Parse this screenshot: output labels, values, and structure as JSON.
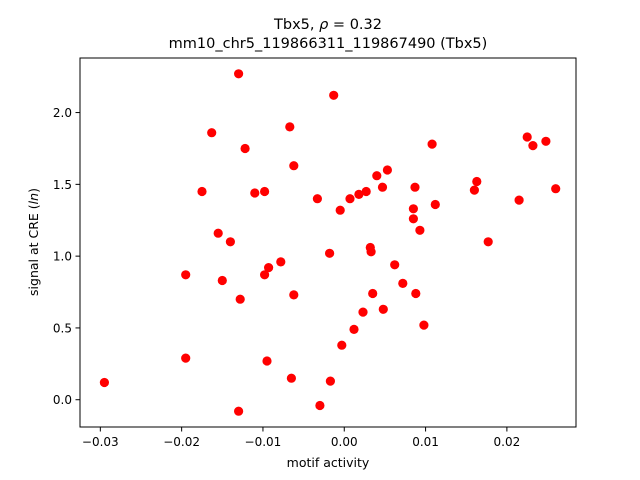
{
  "chart_data": {
    "type": "scatter",
    "title_line1": "Tbx5, ρ = 0.32",
    "title_line2": "mm10_chr5_119866311_119867490 (Tbx5)",
    "xlabel": "motif activity",
    "ylabel": "signal at CRE (ln)",
    "xlim": [
      -0.0325,
      0.0285
    ],
    "ylim": [
      -0.19,
      2.38
    ],
    "xticks": [
      -0.03,
      -0.02,
      -0.01,
      0.0,
      0.01,
      0.02
    ],
    "xtick_labels": [
      "−0.03",
      "−0.02",
      "−0.01",
      "0.00",
      "0.01",
      "0.02"
    ],
    "yticks": [
      0.0,
      0.5,
      1.0,
      1.5,
      2.0
    ],
    "ytick_labels": [
      "0.0",
      "0.5",
      "1.0",
      "1.5",
      "2.0"
    ],
    "grid": false,
    "point_color": "#ff0000",
    "points": [
      [
        -0.0295,
        0.12
      ],
      [
        -0.0195,
        0.29
      ],
      [
        -0.0195,
        0.87
      ],
      [
        -0.0175,
        1.45
      ],
      [
        -0.0163,
        1.86
      ],
      [
        -0.0155,
        1.16
      ],
      [
        -0.015,
        0.83
      ],
      [
        -0.014,
        1.1
      ],
      [
        -0.013,
        2.27
      ],
      [
        -0.013,
        -0.08
      ],
      [
        -0.0128,
        0.7
      ],
      [
        -0.0122,
        1.75
      ],
      [
        -0.011,
        1.44
      ],
      [
        -0.0098,
        1.45
      ],
      [
        -0.0098,
        0.87
      ],
      [
        -0.0095,
        0.27
      ],
      [
        -0.0093,
        0.92
      ],
      [
        -0.0078,
        0.96
      ],
      [
        -0.0067,
        1.9
      ],
      [
        -0.0065,
        0.15
      ],
      [
        -0.0062,
        1.63
      ],
      [
        -0.0062,
        0.73
      ],
      [
        -0.0033,
        1.4
      ],
      [
        -0.003,
        -0.04
      ],
      [
        -0.0018,
        1.02
      ],
      [
        -0.0017,
        0.13
      ],
      [
        -0.0013,
        2.12
      ],
      [
        -0.0005,
        1.32
      ],
      [
        -0.0003,
        0.38
      ],
      [
        0.0007,
        1.4
      ],
      [
        0.0012,
        0.49
      ],
      [
        0.0018,
        1.43
      ],
      [
        0.0023,
        0.61
      ],
      [
        0.0027,
        1.45
      ],
      [
        0.0032,
        1.06
      ],
      [
        0.0033,
        1.03
      ],
      [
        0.0035,
        0.74
      ],
      [
        0.004,
        1.56
      ],
      [
        0.0047,
        1.48
      ],
      [
        0.0048,
        0.63
      ],
      [
        0.0053,
        1.6
      ],
      [
        0.0062,
        0.94
      ],
      [
        0.0072,
        0.81
      ],
      [
        0.0085,
        1.33
      ],
      [
        0.0085,
        1.26
      ],
      [
        0.0087,
        1.48
      ],
      [
        0.0088,
        0.74
      ],
      [
        0.0093,
        1.18
      ],
      [
        0.0098,
        0.52
      ],
      [
        0.0108,
        1.78
      ],
      [
        0.0112,
        1.36
      ],
      [
        0.016,
        1.46
      ],
      [
        0.0163,
        1.52
      ],
      [
        0.0177,
        1.1
      ],
      [
        0.0215,
        1.39
      ],
      [
        0.0225,
        1.83
      ],
      [
        0.0232,
        1.77
      ],
      [
        0.0248,
        1.8
      ],
      [
        0.026,
        1.47
      ]
    ]
  }
}
